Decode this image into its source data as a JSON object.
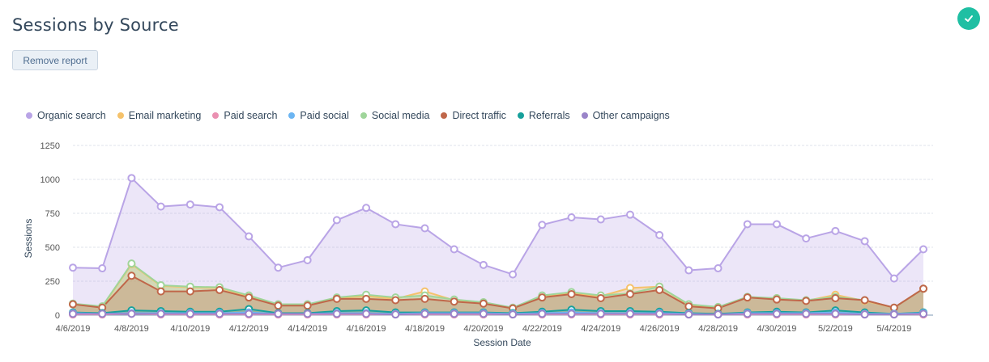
{
  "header": {
    "title": "Sessions by Source",
    "remove_label": "Remove report",
    "status_icon": "check-icon",
    "status_color": "#1fbfa3"
  },
  "chart_data": {
    "type": "area",
    "title": "Sessions by Source",
    "xlabel": "Session Date",
    "ylabel": "Sessions",
    "ylim": [
      0,
      1250
    ],
    "yticks": [
      "0",
      "250",
      "500",
      "750",
      "1000",
      "1250"
    ],
    "ytick_values": [
      0,
      250,
      500,
      750,
      1000,
      1250
    ],
    "grid": true,
    "legend_position": "top-left",
    "x": [
      "4/6/2019",
      "4/7/2019",
      "4/8/2019",
      "4/9/2019",
      "4/10/2019",
      "4/11/2019",
      "4/12/2019",
      "4/13/2019",
      "4/14/2019",
      "4/15/2019",
      "4/16/2019",
      "4/17/2019",
      "4/18/2019",
      "4/19/2019",
      "4/20/2019",
      "4/21/2019",
      "4/22/2019",
      "4/23/2019",
      "4/24/2019",
      "4/25/2019",
      "4/26/2019",
      "4/27/2019",
      "4/28/2019",
      "4/29/2019",
      "4/30/2019",
      "5/1/2019",
      "5/2/2019",
      "5/3/2019",
      "5/4/2019",
      "5/5/2019"
    ],
    "xtick_labels": [
      "4/6/2019",
      "4/8/2019",
      "4/10/2019",
      "4/12/2019",
      "4/14/2019",
      "4/16/2019",
      "4/18/2019",
      "4/20/2019",
      "4/22/2019",
      "4/24/2019",
      "4/26/2019",
      "4/28/2019",
      "4/30/2019",
      "5/2/2019",
      "5/4/2019"
    ],
    "xtick_indices": [
      0,
      2,
      4,
      6,
      8,
      10,
      12,
      14,
      16,
      18,
      20,
      22,
      24,
      26,
      28
    ],
    "series": [
      {
        "name": "Organic search",
        "color": "#b9a4e6",
        "values": [
          350,
          345,
          1010,
          800,
          815,
          795,
          580,
          350,
          405,
          700,
          790,
          670,
          640,
          485,
          370,
          300,
          665,
          720,
          705,
          740,
          590,
          330,
          345,
          670,
          670,
          565,
          620,
          545,
          270,
          485
        ]
      },
      {
        "name": "Email marketing",
        "color": "#f5c26b",
        "values": [
          80,
          60,
          375,
          215,
          205,
          200,
          140,
          75,
          75,
          125,
          140,
          120,
          175,
          110,
          90,
          50,
          140,
          160,
          140,
          200,
          210,
          75,
          55,
          130,
          125,
          105,
          150,
          105,
          55,
          195
        ]
      },
      {
        "name": "Paid search",
        "color": "#ea90b1",
        "values": [
          5,
          5,
          10,
          5,
          5,
          5,
          5,
          5,
          5,
          5,
          5,
          5,
          5,
          5,
          5,
          5,
          5,
          5,
          5,
          5,
          5,
          5,
          5,
          5,
          5,
          5,
          5,
          5,
          5,
          5
        ]
      },
      {
        "name": "Paid social",
        "color": "#6cb5f2",
        "values": [
          15,
          10,
          15,
          15,
          15,
          15,
          20,
          10,
          10,
          15,
          15,
          10,
          15,
          15,
          15,
          10,
          15,
          20,
          15,
          15,
          15,
          10,
          5,
          15,
          15,
          15,
          20,
          10,
          10,
          15
        ]
      },
      {
        "name": "Social media",
        "color": "#9fd59a",
        "values": [
          85,
          65,
          380,
          220,
          210,
          205,
          145,
          80,
          80,
          130,
          150,
          130,
          145,
          115,
          95,
          55,
          145,
          170,
          145,
          160,
          210,
          80,
          60,
          135,
          125,
          110,
          135,
          110,
          55,
          195
        ]
      },
      {
        "name": "Direct traffic",
        "color": "#c0674a",
        "values": [
          80,
          55,
          290,
          175,
          175,
          185,
          130,
          70,
          70,
          120,
          120,
          110,
          120,
          100,
          85,
          50,
          130,
          155,
          125,
          155,
          185,
          65,
          50,
          130,
          115,
          105,
          125,
          110,
          55,
          195
        ]
      },
      {
        "name": "Referrals",
        "color": "#17a09b",
        "values": [
          20,
          15,
          35,
          30,
          25,
          25,
          45,
          15,
          15,
          30,
          35,
          20,
          20,
          20,
          20,
          15,
          25,
          40,
          30,
          30,
          25,
          15,
          10,
          20,
          25,
          20,
          35,
          20,
          10,
          20
        ]
      },
      {
        "name": "Other campaigns",
        "color": "#9a84c9",
        "values": [
          10,
          10,
          10,
          10,
          10,
          10,
          10,
          10,
          10,
          10,
          10,
          5,
          10,
          10,
          10,
          5,
          10,
          10,
          10,
          10,
          10,
          5,
          5,
          10,
          10,
          10,
          10,
          5,
          5,
          10
        ]
      }
    ]
  }
}
